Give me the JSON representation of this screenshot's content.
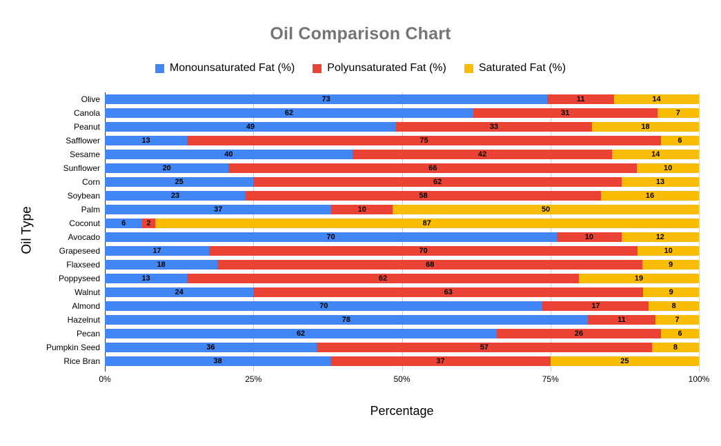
{
  "title": "Oil Comparison Chart",
  "colors": {
    "monounsaturated": "#4285F4",
    "polyunsaturated": "#EA4335",
    "saturated": "#FBBC04",
    "title_text": "#757575",
    "gridline": "#cccccc",
    "axis_line": "#333333",
    "label_text": "#000000"
  },
  "x_axis": {
    "title": "Percentage",
    "ticks": [
      "0%",
      "25%",
      "50%",
      "75%",
      "100%"
    ]
  },
  "y_axis": {
    "title": "Oil Type"
  },
  "chart_data": {
    "type": "bar",
    "orientation": "horizontal",
    "stacking": "percent",
    "title": "Oil Comparison Chart",
    "xlabel": "Percentage",
    "ylabel": "Oil Type",
    "xlim": [
      0,
      100
    ],
    "x_tick_labels": [
      "0%",
      "25%",
      "50%",
      "75%",
      "100%"
    ],
    "grid": true,
    "legend_position": "top",
    "categories": [
      "Olive",
      "Canola",
      "Peanut",
      "Safflower",
      "Sesame",
      "Sunflower",
      "Corn",
      "Soybean",
      "Palm",
      "Coconut",
      "Avocado",
      "Grapeseed",
      "Flaxseed",
      "Poppyseed",
      "Walnut",
      "Almond",
      "Hazelnut",
      "Pecan",
      "Pumpkin Seed",
      "Rice Bran"
    ],
    "series": [
      {
        "name": "Monounsaturated Fat (%)",
        "color": "#4285F4",
        "values": [
          73,
          62,
          49,
          13,
          40,
          20,
          25,
          23,
          37,
          6,
          70,
          17,
          18,
          13,
          24,
          70,
          78,
          62,
          36,
          38
        ]
      },
      {
        "name": "Polyunsaturated Fat (%)",
        "color": "#EA4335",
        "values": [
          11,
          31,
          33,
          75,
          42,
          66,
          62,
          58,
          10,
          2,
          10,
          70,
          68,
          62,
          63,
          17,
          11,
          26,
          57,
          37
        ]
      },
      {
        "name": "Saturated Fat (%)",
        "color": "#FBBC04",
        "values": [
          14,
          7,
          18,
          6,
          14,
          10,
          13,
          16,
          50,
          87,
          12,
          10,
          9,
          19,
          9,
          8,
          7,
          6,
          8,
          25
        ]
      }
    ]
  }
}
